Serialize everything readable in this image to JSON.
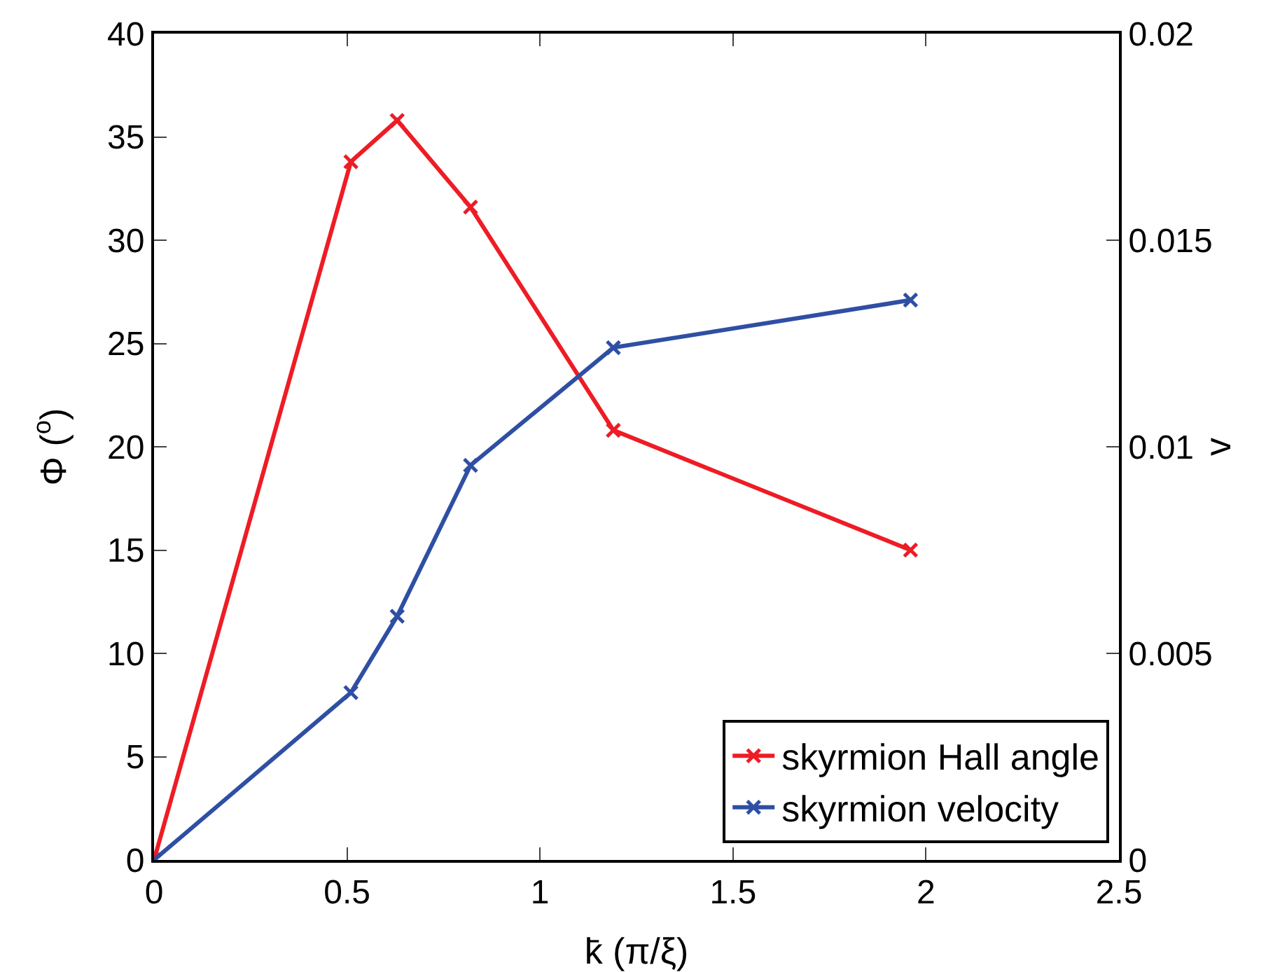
{
  "chart_data": {
    "type": "line",
    "xlabel": "k̄ (π/ξ)",
    "ylabel": "Φ ($^{o}$)",
    "y2label": "v",
    "x": [
      0,
      0.51,
      0.63,
      0.82,
      1.19,
      1.96
    ],
    "series": [
      {
        "name": "skyrmion Hall angle",
        "color": "#ee1c25",
        "values": [
          0,
          33.8,
          35.8,
          31.6,
          20.8,
          15.0
        ]
      },
      {
        "name": "skyrmion velocity",
        "color": "#2e4fa3",
        "axis": "y2",
        "values": [
          0,
          0.00405,
          0.0059,
          0.00955,
          0.0124,
          0.01355
        ]
      }
    ],
    "xlim": [
      0,
      2.5
    ],
    "xticks": [
      0,
      0.5,
      1,
      1.5,
      2,
      2.5
    ],
    "ylim": [
      0,
      40
    ],
    "yticks": [
      0,
      5,
      10,
      15,
      20,
      25,
      30,
      35,
      40
    ],
    "y2lim": [
      0,
      0.02
    ],
    "y2ticks": [
      0,
      0.005,
      0.01,
      0.015,
      0.02
    ],
    "grid": false,
    "legend": "bottom right",
    "marker": "cross",
    "line_style": "solid"
  }
}
